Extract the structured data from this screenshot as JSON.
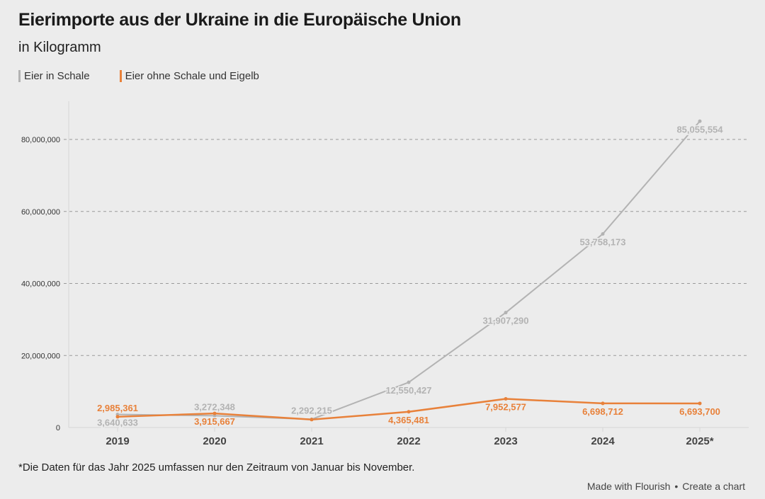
{
  "header": {
    "title": "Eierimporte aus der Ukraine in die Europäische Union",
    "subtitle": "in Kilogramm"
  },
  "footer": {
    "footnote": "*Die Daten für das Jahr 2025 umfassen nur den Zeitraum von Januar bis November.",
    "made_with": "Made with Flourish",
    "separator": "•",
    "create_chart": "Create a chart"
  },
  "chart_data": {
    "type": "line",
    "title": "Eierimporte aus der Ukraine in die Europäische Union",
    "subtitle": "in Kilogramm",
    "xlabel": "",
    "ylabel": "",
    "x": [
      "2019",
      "2020",
      "2021",
      "2022",
      "2023",
      "2024",
      "2025*"
    ],
    "ylim": [
      0,
      90000000
    ],
    "yticks": [
      0,
      20000000,
      40000000,
      60000000,
      80000000
    ],
    "ytick_labels": [
      "0",
      "20,000,000",
      "40,000,000",
      "60,000,000",
      "80,000,000"
    ],
    "grid": "horizontal-dashed",
    "legend_position": "top-left",
    "series": [
      {
        "name": "Eier in Schale",
        "color": "#b3b3b3",
        "values": [
          3640633,
          3272348,
          2292215,
          12550427,
          31907290,
          53758173,
          85055554
        ],
        "labels": [
          "3,640,633",
          "3,272,348",
          "2,292,215",
          "12,550,427",
          "31,907,290",
          "53,758,173",
          "85,055,554"
        ],
        "label_side": [
          "below",
          "above",
          "above",
          "below",
          "below",
          "below",
          "below"
        ]
      },
      {
        "name": "Eier ohne Schale und Eigelb",
        "color": "#e8813a",
        "values": [
          2985361,
          3915667,
          2200000,
          4365481,
          7952577,
          6698712,
          6693700
        ],
        "labels": [
          "2,985,361",
          "3,915,667",
          null,
          "4,365,481",
          "7,952,577",
          "6,698,712",
          "6,693,700"
        ],
        "label_side": [
          "above",
          "below",
          "none",
          "below",
          "below",
          "below",
          "below"
        ]
      }
    ],
    "annotations": [
      "*Die Daten für das Jahr 2025 umfassen nur den Zeitraum von Januar bis November."
    ]
  }
}
